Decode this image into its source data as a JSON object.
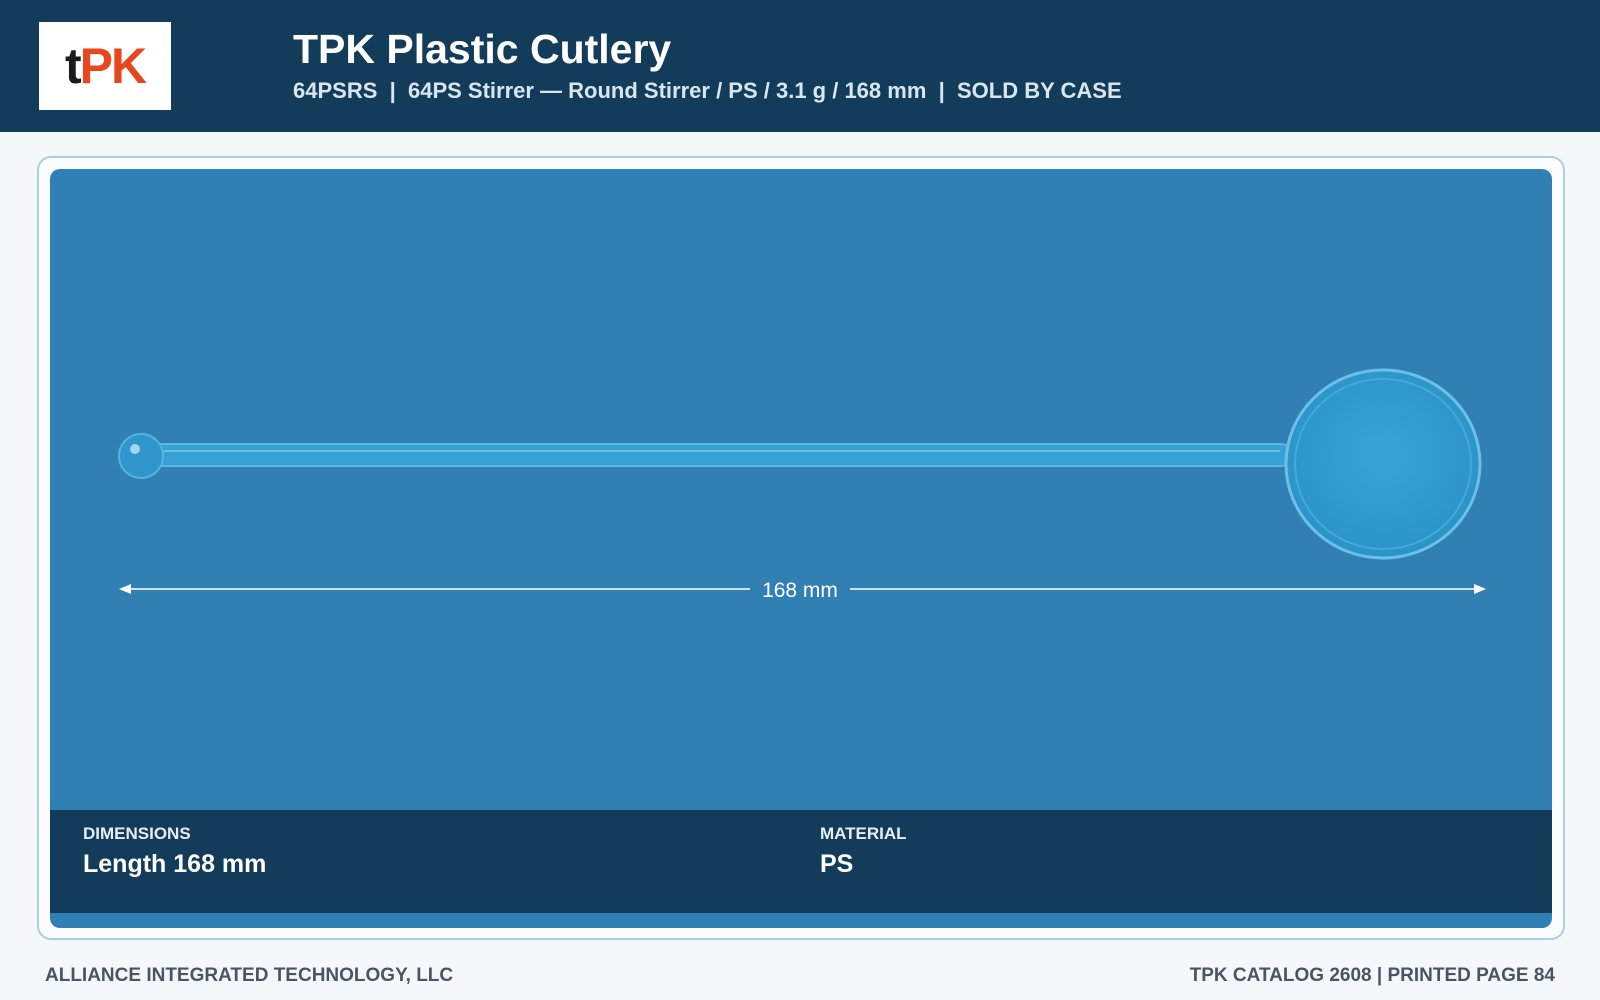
{
  "header": {
    "logo": {
      "prefix": "t",
      "accent": "PK"
    },
    "title": "TPK Plastic Cutlery",
    "subtitle": "64PSRS  |  64PS Stirrer — Round Stirrer / PS / 3.1 g / 168 mm  |  SOLD BY CASE"
  },
  "product": {
    "dimension_label": "168 mm",
    "specs": [
      {
        "label": "DIMENSIONS",
        "value": "Length 168 mm"
      },
      {
        "label": "MATERIAL",
        "value": "PS"
      }
    ]
  },
  "footer": {
    "left": "ALLIANCE INTEGRATED TECHNOLOGY, LLC",
    "right": "TPK CATALOG 2608 | PRINTED PAGE 84"
  }
}
